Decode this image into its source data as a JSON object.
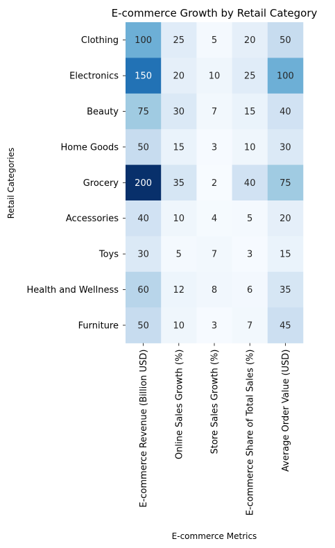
{
  "chart_data": {
    "type": "heatmap",
    "title": "E-commerce Growth by Retail Category",
    "xlabel": "E-commerce Metrics",
    "ylabel": "Retail Categories",
    "columns": [
      "E-commerce Revenue (Billion USD)",
      "Online Sales Growth (%)",
      "Store Sales Growth (%)",
      "E-commerce Share of Total Sales (%)",
      "Average Order Value (USD)"
    ],
    "rows": [
      "Clothing",
      "Electronics",
      "Beauty",
      "Home Goods",
      "Grocery",
      "Accessories",
      "Toys",
      "Health and Wellness",
      "Furniture"
    ],
    "values": [
      [
        100,
        25,
        5,
        20,
        50
      ],
      [
        150,
        20,
        10,
        25,
        100
      ],
      [
        75,
        30,
        7,
        15,
        40
      ],
      [
        50,
        15,
        3,
        10,
        30
      ],
      [
        200,
        35,
        2,
        40,
        75
      ],
      [
        40,
        10,
        4,
        5,
        20
      ],
      [
        30,
        5,
        7,
        3,
        15
      ],
      [
        60,
        12,
        8,
        6,
        35
      ],
      [
        50,
        10,
        3,
        7,
        45
      ]
    ],
    "vmin": 2,
    "vmax": 200,
    "colormap": "Blues",
    "colorbar": false,
    "grid": false
  }
}
